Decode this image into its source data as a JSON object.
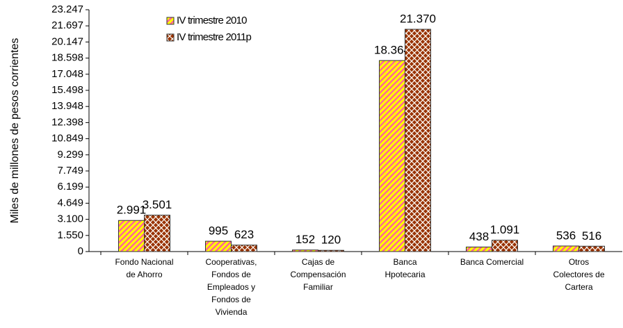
{
  "chart_data": {
    "type": "bar",
    "y_label": "Miles de millones de pesos corrientes",
    "categories": [
      "Fondo Nacional\nde Ahorro",
      "Cooperativas,\nFondos de\nEmpleados y\nFondos de\nVivienda",
      "Cajas de\nCompensación\nFamiliar",
      "Banca\nHpotecaria",
      "Banca Comercial",
      "Otros\nColectores de\nCartera"
    ],
    "series": [
      {
        "name": "IV trimestre 2010",
        "color": "#ffff00",
        "stripe_color": "#ff6699",
        "values": [
          2991,
          995,
          152,
          18364,
          438,
          536
        ],
        "value_labels": [
          "2.991",
          "995",
          "152",
          "18.364",
          "438",
          "536"
        ]
      },
      {
        "name": "IV trimestre 2011p",
        "color": "#993300",
        "stripe_color": "#ffffff",
        "values": [
          3501,
          623,
          120,
          21370,
          1091,
          516
        ],
        "value_labels": [
          "3.501",
          "623",
          "120",
          "21.370",
          "1.091",
          "516"
        ]
      }
    ],
    "ylim": [
      0,
      23247
    ],
    "yticks": [
      0,
      {
        "value": 1550,
        "label": "1.550"
      },
      {
        "value": 3100,
        "label": "3.100"
      },
      {
        "value": 4649,
        "label": "4.649"
      },
      {
        "value": 6199,
        "label": "6.199"
      },
      {
        "value": 7749,
        "label": "7.749"
      },
      {
        "value": 9299,
        "label": "9.299"
      },
      {
        "value": 10849,
        "label": "10.849"
      },
      {
        "value": 12398,
        "label": "12.398"
      },
      {
        "value": 13948,
        "label": "13.948"
      },
      {
        "value": 15498,
        "label": "15.498"
      },
      {
        "value": 17048,
        "label": "17.048"
      },
      {
        "value": 18598,
        "label": "18.598"
      },
      {
        "value": 20147,
        "label": "20.147"
      },
      {
        "value": 21697,
        "label": "21.697"
      },
      {
        "value": 23247,
        "label": "23.247"
      }
    ],
    "grid": false,
    "legend": "top-left"
  }
}
